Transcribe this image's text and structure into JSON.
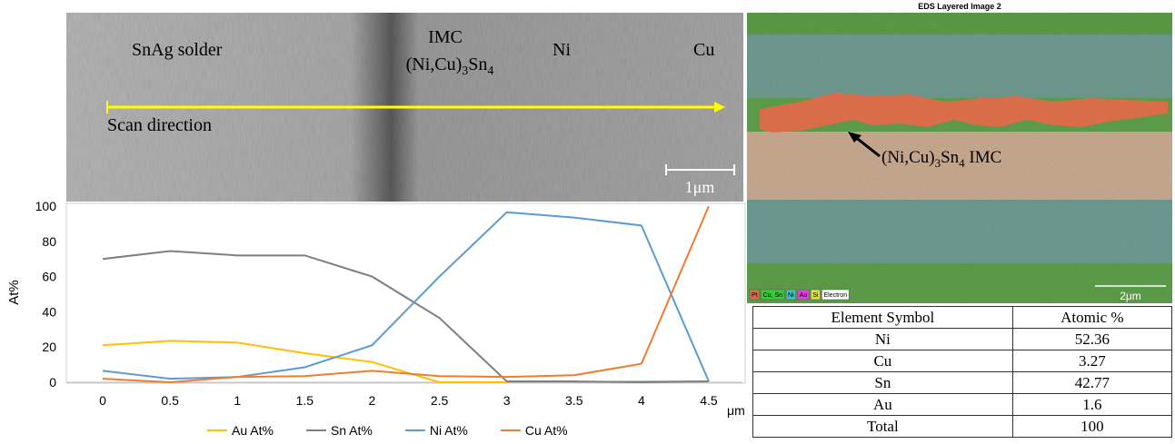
{
  "sem_image": {
    "labels": {
      "solder": "SnAg solder",
      "imc": "IMC",
      "imc_formula": [
        "(Ni,Cu)",
        "3",
        "Sn",
        "4"
      ],
      "ni": "Ni",
      "cu": "Cu",
      "scan": "Scan direction",
      "scale": "1μm"
    }
  },
  "chart_data": {
    "type": "line",
    "ylabel": "At%",
    "xlabel": "μm",
    "x": [
      0,
      0.5,
      1,
      1.5,
      2,
      2.5,
      3,
      3.5,
      4,
      4.5
    ],
    "xlim": [
      -0.25,
      4.75
    ],
    "xticks": [
      0,
      0.5,
      1,
      1.5,
      2,
      2.5,
      3,
      3.5,
      4,
      4.5
    ],
    "ylim": [
      0,
      100
    ],
    "yticks": [
      0,
      20,
      40,
      60,
      80,
      100
    ],
    "legend": "bottom",
    "series": [
      {
        "name": "Au At%",
        "color": "#ffc000",
        "values": [
          21,
          23.5,
          22.5,
          16.5,
          11.5,
          0,
          0,
          0,
          0.5,
          0.5
        ]
      },
      {
        "name": "Sn At%",
        "color": "#7f7f7f",
        "values": [
          70,
          74.5,
          72,
          72,
          60,
          36.5,
          0.5,
          0.5,
          0,
          0.5
        ]
      },
      {
        "name": "Ni At%",
        "color": "#5b9bd5",
        "values": [
          6.5,
          2,
          3,
          8.5,
          21,
          60,
          96.5,
          93.5,
          89,
          0.5
        ]
      },
      {
        "name": "Cu At%",
        "color": "#ed7d31",
        "values": [
          2,
          0,
          3,
          3.5,
          6.5,
          3.5,
          3,
          4,
          10.5,
          100
        ]
      }
    ]
  },
  "eds_image": {
    "title": "EDS Layered Image 2",
    "annotation": [
      "(Ni,Cu)",
      "3",
      "Sn",
      "4",
      " IMC"
    ],
    "legend": [
      "Pt",
      "Cu, Sn",
      "Ni",
      "Au",
      "Si",
      "Electron"
    ],
    "scale": "2μm"
  },
  "table": {
    "header": [
      "Element Symbol",
      "Atomic %"
    ],
    "rows": [
      [
        "Ni",
        52.36
      ],
      [
        "Cu",
        3.27
      ],
      [
        "Sn",
        42.77
      ],
      [
        "Au",
        1.6
      ],
      [
        "Total",
        100
      ]
    ]
  }
}
